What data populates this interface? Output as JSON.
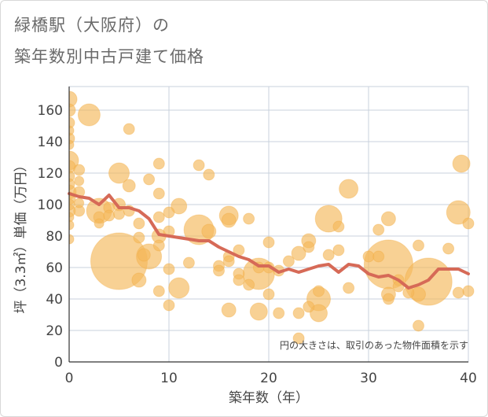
{
  "title_line1": "緑橋駅（大阪府）の",
  "title_line2": "築年数別中古戸建て価格",
  "chart_data": {
    "type": "scatter",
    "xlabel": "築年数（年）",
    "ylabel": "坪（3.3㎡）単価（万円）",
    "xlim": [
      0,
      40
    ],
    "ylim": [
      0,
      175
    ],
    "xticks": [
      0,
      10,
      20,
      30,
      40
    ],
    "yticks": [
      0,
      20,
      40,
      60,
      80,
      100,
      120,
      140,
      160
    ],
    "grid": true,
    "note": "円の大きさは、取引のあった物件面積を示す",
    "colors": {
      "bubble": "#f5b95a",
      "line": "#d66a57",
      "grid": "#c9d2dc"
    },
    "bubbles": [
      {
        "x": 0,
        "y": 167,
        "s": 10
      },
      {
        "x": 0,
        "y": 160,
        "s": 8
      },
      {
        "x": 0,
        "y": 152,
        "s": 7
      },
      {
        "x": 0,
        "y": 147,
        "s": 6
      },
      {
        "x": 0,
        "y": 142,
        "s": 7
      },
      {
        "x": 0,
        "y": 138,
        "s": 6
      },
      {
        "x": 0,
        "y": 128,
        "s": 12
      },
      {
        "x": 0,
        "y": 124,
        "s": 8
      },
      {
        "x": 0,
        "y": 118,
        "s": 7
      },
      {
        "x": 0,
        "y": 113,
        "s": 7
      },
      {
        "x": 0,
        "y": 108,
        "s": 9
      },
      {
        "x": 0,
        "y": 104,
        "s": 8
      },
      {
        "x": 0,
        "y": 100,
        "s": 7
      },
      {
        "x": 0,
        "y": 96,
        "s": 8
      },
      {
        "x": 0,
        "y": 92,
        "s": 6
      },
      {
        "x": 0,
        "y": 87,
        "s": 6
      },
      {
        "x": 0,
        "y": 78,
        "s": 6
      },
      {
        "x": 1,
        "y": 122,
        "s": 7
      },
      {
        "x": 1,
        "y": 115,
        "s": 6
      },
      {
        "x": 1,
        "y": 108,
        "s": 7
      },
      {
        "x": 1,
        "y": 101,
        "s": 6
      },
      {
        "x": 1,
        "y": 96,
        "s": 7
      },
      {
        "x": 2,
        "y": 157,
        "s": 14
      },
      {
        "x": 3,
        "y": 96,
        "s": 16
      },
      {
        "x": 3,
        "y": 92,
        "s": 7
      },
      {
        "x": 3,
        "y": 88,
        "s": 6
      },
      {
        "x": 4,
        "y": 98,
        "s": 7
      },
      {
        "x": 4,
        "y": 93,
        "s": 7
      },
      {
        "x": 5,
        "y": 120,
        "s": 13
      },
      {
        "x": 5,
        "y": 100,
        "s": 8
      },
      {
        "x": 5,
        "y": 94,
        "s": 7
      },
      {
        "x": 5,
        "y": 64,
        "s": 36
      },
      {
        "x": 6,
        "y": 148,
        "s": 7
      },
      {
        "x": 6,
        "y": 112,
        "s": 8
      },
      {
        "x": 6,
        "y": 96,
        "s": 7
      },
      {
        "x": 7,
        "y": 88,
        "s": 7
      },
      {
        "x": 7,
        "y": 79,
        "s": 7
      },
      {
        "x": 7,
        "y": 52,
        "s": 9
      },
      {
        "x": 7.5,
        "y": 68,
        "s": 8
      },
      {
        "x": 8,
        "y": 116,
        "s": 7
      },
      {
        "x": 8,
        "y": 67,
        "s": 16
      },
      {
        "x": 9,
        "y": 126,
        "s": 7
      },
      {
        "x": 9,
        "y": 107,
        "s": 7
      },
      {
        "x": 9,
        "y": 92,
        "s": 7
      },
      {
        "x": 9,
        "y": 80,
        "s": 9
      },
      {
        "x": 9,
        "y": 74,
        "s": 7
      },
      {
        "x": 9,
        "y": 45,
        "s": 7
      },
      {
        "x": 10,
        "y": 95,
        "s": 7
      },
      {
        "x": 10,
        "y": 83,
        "s": 7
      },
      {
        "x": 10,
        "y": 59,
        "s": 7
      },
      {
        "x": 10,
        "y": 36,
        "s": 7
      },
      {
        "x": 11,
        "y": 99,
        "s": 10
      },
      {
        "x": 11,
        "y": 47,
        "s": 13
      },
      {
        "x": 12,
        "y": 63,
        "s": 7
      },
      {
        "x": 13,
        "y": 125,
        "s": 7
      },
      {
        "x": 13,
        "y": 84,
        "s": 19
      },
      {
        "x": 14,
        "y": 119,
        "s": 7
      },
      {
        "x": 14,
        "y": 83,
        "s": 9
      },
      {
        "x": 15,
        "y": 61,
        "s": 7
      },
      {
        "x": 15,
        "y": 58,
        "s": 7
      },
      {
        "x": 16,
        "y": 93,
        "s": 12
      },
      {
        "x": 16,
        "y": 90,
        "s": 9
      },
      {
        "x": 16,
        "y": 67,
        "s": 7
      },
      {
        "x": 16,
        "y": 64,
        "s": 7
      },
      {
        "x": 16,
        "y": 33,
        "s": 9
      },
      {
        "x": 17,
        "y": 71,
        "s": 7
      },
      {
        "x": 17,
        "y": 56,
        "s": 7
      },
      {
        "x": 17,
        "y": 52,
        "s": 7
      },
      {
        "x": 18,
        "y": 91,
        "s": 7
      },
      {
        "x": 18,
        "y": 49,
        "s": 7
      },
      {
        "x": 19,
        "y": 60,
        "s": 7
      },
      {
        "x": 19,
        "y": 56,
        "s": 20
      },
      {
        "x": 19,
        "y": 32,
        "s": 11
      },
      {
        "x": 20,
        "y": 76,
        "s": 7
      },
      {
        "x": 20,
        "y": 60,
        "s": 7
      },
      {
        "x": 20,
        "y": 43,
        "s": 7
      },
      {
        "x": 21,
        "y": 58,
        "s": 7
      },
      {
        "x": 21,
        "y": 31,
        "s": 7
      },
      {
        "x": 22,
        "y": 64,
        "s": 7
      },
      {
        "x": 23,
        "y": 69,
        "s": 9
      },
      {
        "x": 23,
        "y": 31,
        "s": 7
      },
      {
        "x": 23,
        "y": 15,
        "s": 7
      },
      {
        "x": 24,
        "y": 77,
        "s": 9
      },
      {
        "x": 24,
        "y": 73,
        "s": 7
      },
      {
        "x": 24,
        "y": 35,
        "s": 7
      },
      {
        "x": 25,
        "y": 45,
        "s": 7
      },
      {
        "x": 25,
        "y": 40,
        "s": 15
      },
      {
        "x": 25,
        "y": 31,
        "s": 11
      },
      {
        "x": 26,
        "y": 91,
        "s": 17
      },
      {
        "x": 26,
        "y": 68,
        "s": 7
      },
      {
        "x": 27,
        "y": 86,
        "s": 7
      },
      {
        "x": 27,
        "y": 71,
        "s": 7
      },
      {
        "x": 28,
        "y": 110,
        "s": 12
      },
      {
        "x": 28,
        "y": 47,
        "s": 7
      },
      {
        "x": 30,
        "y": 67,
        "s": 7
      },
      {
        "x": 31,
        "y": 84,
        "s": 7
      },
      {
        "x": 31,
        "y": 67,
        "s": 7
      },
      {
        "x": 32,
        "y": 91,
        "s": 9
      },
      {
        "x": 32,
        "y": 62,
        "s": 31
      },
      {
        "x": 32,
        "y": 43,
        "s": 9
      },
      {
        "x": 32,
        "y": 40,
        "s": 7
      },
      {
        "x": 33,
        "y": 52,
        "s": 7
      },
      {
        "x": 33,
        "y": 48,
        "s": 7
      },
      {
        "x": 34,
        "y": 44,
        "s": 7
      },
      {
        "x": 35,
        "y": 74,
        "s": 7
      },
      {
        "x": 35,
        "y": 43,
        "s": 9
      },
      {
        "x": 35,
        "y": 23,
        "s": 7
      },
      {
        "x": 36,
        "y": 51,
        "s": 30
      },
      {
        "x": 38,
        "y": 72,
        "s": 7
      },
      {
        "x": 39,
        "y": 95,
        "s": 15
      },
      {
        "x": 39,
        "y": 44,
        "s": 7
      },
      {
        "x": 39.3,
        "y": 126,
        "s": 11
      },
      {
        "x": 40,
        "y": 88,
        "s": 7
      },
      {
        "x": 40,
        "y": 45,
        "s": 7
      }
    ],
    "trend": {
      "x": [
        0,
        1,
        2,
        3,
        4,
        5,
        6,
        7,
        8,
        9,
        10,
        11,
        12,
        13,
        14,
        15,
        16,
        17,
        18,
        19,
        20,
        21,
        22,
        23,
        24,
        25,
        26,
        27,
        28,
        29,
        30,
        31,
        32,
        33,
        34,
        35,
        36,
        37,
        38,
        39,
        40
      ],
      "y": [
        107,
        105,
        104,
        100,
        106,
        98,
        98,
        96,
        91,
        81,
        80,
        79,
        78,
        77,
        77,
        73,
        70,
        67,
        65,
        61,
        61,
        57,
        59,
        57,
        59,
        61,
        62,
        57,
        62,
        61,
        56,
        54,
        55,
        52,
        47,
        49,
        52,
        59,
        59,
        59,
        56
      ]
    }
  }
}
